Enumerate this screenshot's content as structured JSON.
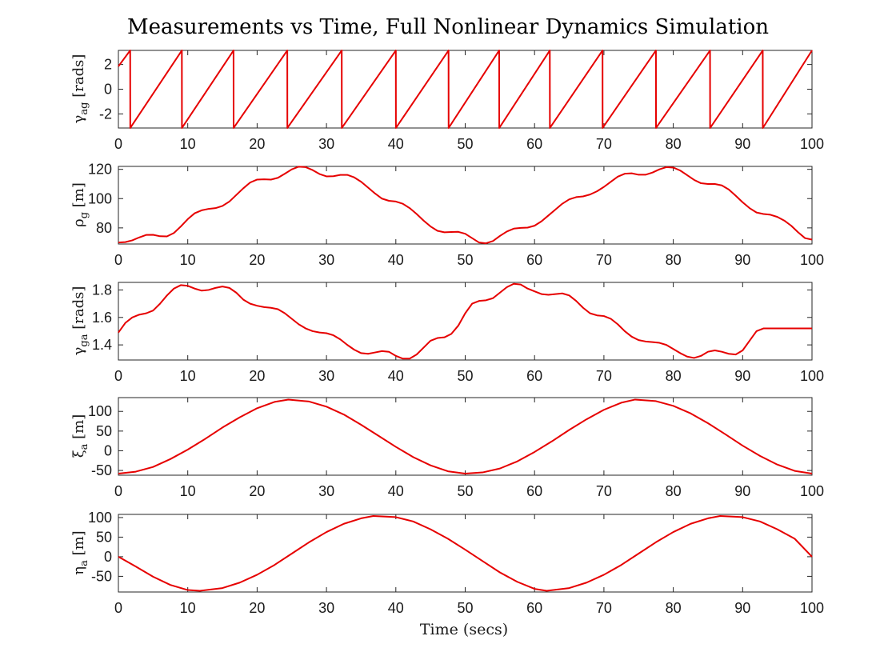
{
  "figure": {
    "title": "Measurements vs Time, Full Nonlinear Dynamics Simulation",
    "xlabel": "Time (secs)"
  },
  "colors": {
    "series": "#e60000",
    "axes": "#262626",
    "background": "#ffffff"
  },
  "chart_data": [
    {
      "type": "line",
      "ylabel": "γag [rads]",
      "ylabel_main": "γ",
      "ylabel_sub": "ag",
      "ylabel_unit": "[rads]",
      "xlim": [
        0,
        100
      ],
      "ylim": [
        -3.1416,
        3.1416
      ],
      "xticks": [
        0,
        10,
        20,
        30,
        40,
        50,
        60,
        70,
        80,
        90,
        100
      ],
      "yticks": [
        -2,
        0,
        2
      ],
      "grid": false,
      "series": [
        {
          "x": [
            0,
            1.7,
            1.71,
            9.15,
            9.16,
            16.6,
            16.61,
            24.35,
            24.36,
            32.2,
            32.21,
            40.0,
            40.01,
            47.6,
            47.61,
            54.9,
            54.91,
            62.2,
            62.21,
            69.8,
            69.81,
            77.5,
            77.51,
            85.3,
            85.31,
            92.9,
            92.91,
            100
          ],
          "values": [
            1.85,
            3.14,
            -3.14,
            3.14,
            -3.14,
            3.14,
            -3.14,
            3.14,
            -3.14,
            3.14,
            -3.14,
            3.14,
            -3.14,
            3.14,
            -3.14,
            3.14,
            -3.14,
            3.14,
            -3.14,
            3.14,
            -3.14,
            3.14,
            -3.14,
            3.14,
            -3.14,
            3.14,
            -3.14,
            3.14
          ]
        }
      ]
    },
    {
      "type": "line",
      "ylabel": "ρg [m]",
      "ylabel_main": "ρ",
      "ylabel_sub": "g",
      "ylabel_unit": "[m]",
      "xlim": [
        0,
        100
      ],
      "ylim": [
        69,
        122
      ],
      "xticks": [
        0,
        10,
        20,
        30,
        40,
        50,
        60,
        70,
        80,
        90,
        100
      ],
      "yticks": [
        80,
        100,
        120
      ],
      "grid": false,
      "series": [
        {
          "x": [
            0,
            1,
            2,
            3,
            4,
            5,
            6,
            7,
            8,
            9,
            10,
            11,
            12,
            13,
            14,
            15,
            16,
            17,
            18,
            19,
            20,
            21,
            22,
            23,
            24,
            25,
            26,
            27,
            28,
            29,
            30,
            31,
            32,
            33,
            34,
            35,
            36,
            37,
            38,
            39,
            40,
            41,
            42,
            43,
            44,
            45,
            46,
            47,
            48,
            49,
            50,
            51,
            52,
            53,
            54,
            55,
            56,
            57,
            58,
            59,
            60,
            61,
            62,
            63,
            64,
            65,
            66,
            67,
            68,
            69,
            70,
            71,
            72,
            73,
            74,
            75,
            76,
            77,
            78,
            79,
            80,
            81,
            82,
            83,
            84,
            85,
            86,
            87,
            88,
            89,
            90,
            91,
            92,
            93,
            94,
            95,
            96,
            97,
            98,
            99,
            100
          ],
          "values": [
            70,
            70.3,
            71.5,
            73.5,
            75.2,
            75.3,
            74.3,
            74.2,
            76.5,
            81,
            86,
            90,
            92,
            93,
            93.5,
            95,
            98,
            102.5,
            107,
            111,
            113,
            113.2,
            113,
            114.2,
            117,
            120,
            121.8,
            121.5,
            119.5,
            116.8,
            115.2,
            115.3,
            116.2,
            116.2,
            114.5,
            111.5,
            107.5,
            103.5,
            100,
            98.5,
            98,
            96.5,
            93.5,
            89.5,
            85,
            81,
            78,
            77,
            77.2,
            77.3,
            76,
            73,
            70,
            69.5,
            71,
            74.5,
            77.5,
            79.5,
            80,
            80.2,
            81.5,
            84.5,
            88.5,
            92.5,
            96.5,
            99.5,
            101,
            101.5,
            102.8,
            105,
            108,
            111.5,
            115,
            117,
            117.3,
            116.3,
            116.3,
            117.8,
            120,
            121.5,
            121.2,
            119.2,
            116,
            112.8,
            110.5,
            110,
            110,
            109,
            106.2,
            102,
            97.5,
            93.5,
            90.5,
            89.5,
            89,
            87.5,
            85,
            81.5,
            77,
            73,
            72
          ]
        }
      ]
    },
    {
      "type": "line",
      "ylabel": "γga [rads]",
      "ylabel_main": "γ",
      "ylabel_sub": "ga",
      "ylabel_unit": "[rads]",
      "xlim": [
        0,
        100
      ],
      "ylim": [
        1.29,
        1.855
      ],
      "xticks": [
        0,
        10,
        20,
        30,
        40,
        50,
        60,
        70,
        80,
        90,
        100
      ],
      "yticks": [
        1.4,
        1.6,
        1.8
      ],
      "ytick_labels": [
        "1.4",
        "1.6",
        "1.8"
      ],
      "grid": false,
      "series": [
        {
          "x": [
            0,
            1,
            2,
            3,
            4,
            5,
            6,
            7,
            8,
            9,
            10,
            11,
            12,
            13,
            14,
            15,
            16,
            17,
            18,
            19,
            20,
            21,
            22,
            23,
            24,
            25,
            26,
            27,
            28,
            29,
            30,
            31,
            32,
            33,
            34,
            35,
            36,
            37,
            38,
            39,
            40,
            41,
            42,
            43,
            44,
            45,
            46,
            47,
            48,
            49,
            50,
            51,
            52,
            53,
            54,
            55,
            56,
            57,
            58,
            59,
            60,
            61,
            62,
            63,
            64,
            65,
            66,
            67,
            68,
            69,
            70,
            71,
            72,
            73,
            74,
            75,
            76,
            77,
            78,
            79,
            80,
            81,
            82,
            83,
            84,
            85,
            86,
            87,
            88,
            89,
            90,
            91,
            92,
            93,
            94,
            95,
            96,
            97,
            98,
            99,
            100
          ],
          "values": [
            1.49,
            1.56,
            1.6,
            1.62,
            1.63,
            1.65,
            1.7,
            1.76,
            1.81,
            1.835,
            1.83,
            1.81,
            1.795,
            1.8,
            1.815,
            1.825,
            1.815,
            1.78,
            1.73,
            1.7,
            1.685,
            1.675,
            1.67,
            1.66,
            1.63,
            1.59,
            1.55,
            1.52,
            1.5,
            1.49,
            1.485,
            1.47,
            1.44,
            1.4,
            1.365,
            1.34,
            1.335,
            1.345,
            1.355,
            1.35,
            1.32,
            1.3,
            1.3,
            1.33,
            1.38,
            1.43,
            1.45,
            1.455,
            1.48,
            1.54,
            1.63,
            1.7,
            1.72,
            1.725,
            1.74,
            1.78,
            1.82,
            1.845,
            1.84,
            1.81,
            1.79,
            1.77,
            1.765,
            1.77,
            1.775,
            1.76,
            1.72,
            1.67,
            1.63,
            1.615,
            1.61,
            1.59,
            1.55,
            1.5,
            1.46,
            1.435,
            1.425,
            1.42,
            1.415,
            1.4,
            1.37,
            1.34,
            1.315,
            1.305,
            1.32,
            1.35,
            1.36,
            1.35,
            1.335,
            1.33,
            1.36,
            1.43,
            1.5,
            1.52,
            1.52,
            1.52,
            1.52,
            1.52,
            1.52,
            1.52,
            1.52
          ]
        }
      ]
    },
    {
      "type": "line",
      "ylabel": "ξa [m]",
      "ylabel_main": "ξ",
      "ylabel_sub": "a",
      "ylabel_unit": "[m]",
      "xlim": [
        0,
        100
      ],
      "ylim": [
        -62,
        135
      ],
      "xticks": [
        0,
        10,
        20,
        30,
        40,
        50,
        60,
        70,
        80,
        90,
        100
      ],
      "yticks": [
        -50,
        0,
        50,
        100
      ],
      "grid": false,
      "series": [
        {
          "x": [
            0,
            2.5,
            5,
            7.5,
            10,
            12.5,
            15,
            17.5,
            20,
            22.5,
            24.5,
            27.5,
            30,
            32.5,
            35,
            37.5,
            40,
            42.5,
            45,
            47.5,
            50,
            52.5,
            55,
            57.5,
            60,
            62.5,
            65,
            67.5,
            70,
            72.5,
            74.5,
            77.5,
            80,
            82.5,
            85,
            87.5,
            90,
            92.5,
            95,
            97.5,
            100
          ],
          "values": [
            -58,
            -53,
            -41,
            -21,
            3,
            30,
            59,
            85,
            108,
            124,
            130,
            125,
            112,
            92,
            66,
            38,
            10,
            -16,
            -37,
            -52,
            -58,
            -55,
            -45,
            -27,
            -3,
            24,
            53,
            80,
            104,
            122,
            130,
            126,
            114,
            95,
            70,
            42,
            13,
            -13,
            -35,
            -51,
            -58
          ]
        }
      ]
    },
    {
      "type": "line",
      "ylabel": "ηa [m]",
      "ylabel_main": "η",
      "ylabel_sub": "a",
      "ylabel_unit": "[m]",
      "xlim": [
        0,
        100
      ],
      "ylim": [
        -90,
        108
      ],
      "xticks": [
        0,
        10,
        20,
        30,
        40,
        50,
        60,
        70,
        80,
        90,
        100
      ],
      "yticks": [
        -50,
        0,
        50,
        100
      ],
      "grid": false,
      "series": [
        {
          "x": [
            0,
            2.5,
            5,
            7.5,
            10,
            11.75,
            15,
            17.5,
            20,
            22.5,
            25,
            27.5,
            30,
            32.5,
            35,
            36.75,
            40,
            42.5,
            45,
            47.5,
            50,
            52.5,
            55,
            57.5,
            60,
            61.75,
            65,
            67.5,
            70,
            72.5,
            75,
            77.5,
            80,
            82.5,
            85,
            86.75,
            90,
            92.5,
            95,
            97.5,
            100
          ],
          "values": [
            0,
            -25,
            -51,
            -72,
            -85,
            -87,
            -80,
            -66,
            -46,
            -21,
            8,
            37,
            63,
            84,
            98,
            104,
            101,
            90,
            70,
            46,
            18,
            -11,
            -40,
            -64,
            -82,
            -87,
            -80,
            -66,
            -46,
            -21,
            8,
            37,
            63,
            84,
            98,
            104,
            101,
            90,
            70,
            46,
            0
          ]
        }
      ]
    }
  ]
}
